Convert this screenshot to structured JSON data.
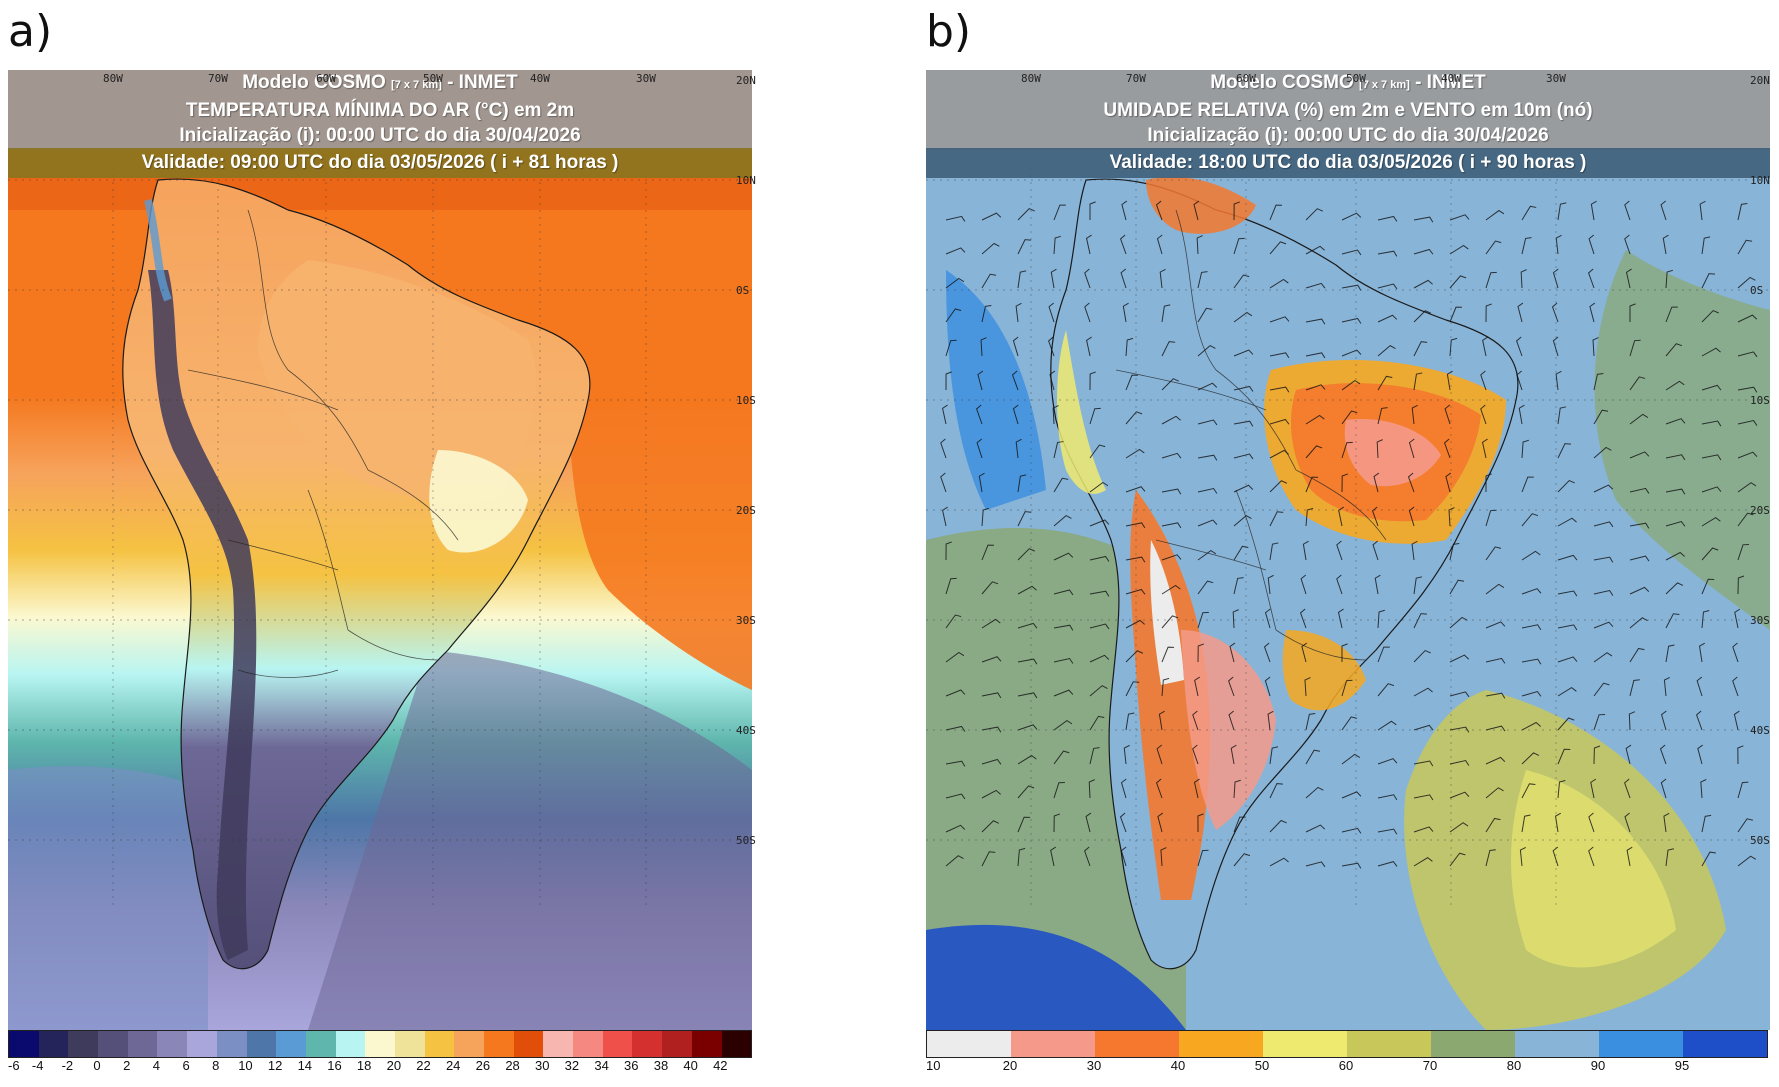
{
  "panel_a": {
    "letter": "a)",
    "title_model_prefix": "Modelo COSMO",
    "title_model_res": "[7 x 7 km]",
    "title_model_suffix": "- INMET",
    "title_variable": "TEMPERATURA MÍNIMA DO AR (°C) em 2m",
    "title_init": "Inicialização (i): 00:00 UTC do dia 30/04/2026",
    "title_valid": "Validade: 09:00 UTC do dia 03/05/2026 ( i + 81 horas )",
    "lon_labels": [
      "80W",
      "70W",
      "60W",
      "50W",
      "40W",
      "30W"
    ],
    "lat_labels": [
      "20N",
      "10N",
      "0S",
      "10S",
      "20S",
      "30S",
      "40S",
      "50S"
    ],
    "colorbar_labels": [
      "-6",
      "-4",
      "-2",
      "0",
      "2",
      "4",
      "6",
      "8",
      "10",
      "12",
      "14",
      "16",
      "18",
      "20",
      "22",
      "24",
      "26",
      "28",
      "30",
      "32",
      "34",
      "36",
      "38",
      "40",
      "42"
    ],
    "colorbar_colors": [
      "#0a0a6e",
      "#24245a",
      "#3f3b5c",
      "#54507a",
      "#6d6896",
      "#8a86b8",
      "#a9a6dc",
      "#7c8fc4",
      "#4e76a8",
      "#5b9bd5",
      "#5eb6ac",
      "#b8f5f2",
      "#fbf8d0",
      "#efe39a",
      "#f5c242",
      "#f6a35c",
      "#f5781f",
      "#e04e0a",
      "#f7b6b0",
      "#f58880",
      "#f0504a",
      "#d43030",
      "#b0201f",
      "#7a0000",
      "#2a0000"
    ]
  },
  "panel_b": {
    "letter": "b)",
    "title_model_prefix": "Modelo COSMO",
    "title_model_res": "[7 x 7 km]",
    "title_model_suffix": "- INMET",
    "title_variable": "UMIDADE RELATIVA (%) em 2m e VENTO em 10m (nó)",
    "title_init": "Inicialização (i): 00:00 UTC do dia 30/04/2026",
    "title_valid": "Validade: 18:00 UTC do dia 03/05/2026 ( i + 90 horas )",
    "lon_labels": [
      "80W",
      "70W",
      "60W",
      "50W",
      "40W",
      "30W"
    ],
    "lat_labels": [
      "20N",
      "10N",
      "0S",
      "10S",
      "20S",
      "30S",
      "40S",
      "50S"
    ],
    "colorbar_labels": [
      "10",
      "20",
      "30",
      "40",
      "50",
      "60",
      "70",
      "80",
      "90",
      "95"
    ],
    "colorbar_colors": [
      "#ececec",
      "#f59a8a",
      "#f5782e",
      "#f7a820",
      "#eeea70",
      "#c8c85a",
      "#8aa870",
      "#88b4d8",
      "#3b8fe0",
      "#1f4fc8"
    ]
  }
}
